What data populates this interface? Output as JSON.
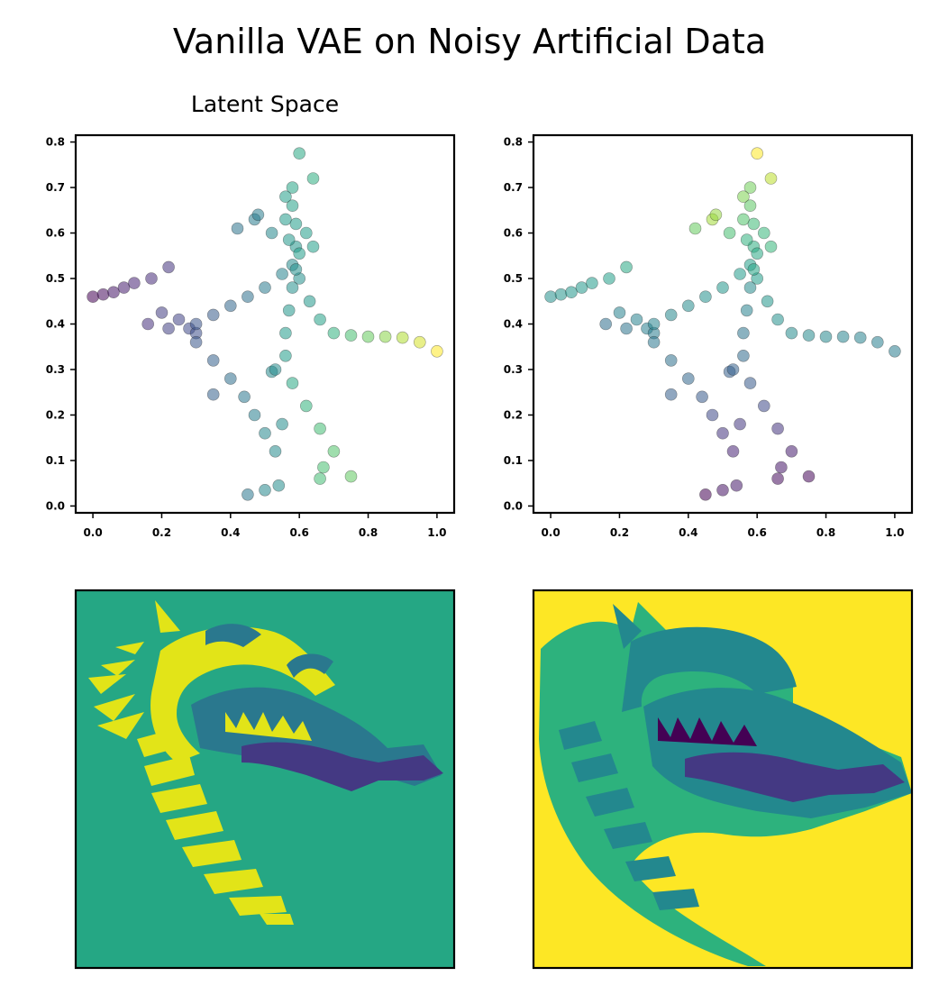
{
  "figure": {
    "suptitle": "Vanilla VAE on Noisy Artificial Data",
    "colormap": "viridis"
  },
  "chart_data": [
    {
      "type": "scatter",
      "title": "Latent Space",
      "xlim": [
        -0.05,
        1.05
      ],
      "ylim": [
        -0.015,
        0.815
      ],
      "xticks": [
        "0.0",
        "0.2",
        "0.4",
        "0.6",
        "0.8",
        "1.0"
      ],
      "yticks": [
        "0.0",
        "0.1",
        "0.2",
        "0.3",
        "0.4",
        "0.5",
        "0.6",
        "0.7",
        "0.8"
      ],
      "grid": false,
      "color_by": "cluster",
      "palette": {
        "A": "#440154",
        "B": "#3b528b",
        "C": "#21918c",
        "D": "#5ec962",
        "E": "#fde725"
      },
      "point_alpha": 0.55,
      "points": [
        {
          "x": 0.0,
          "y": 0.46,
          "c": 0.0
        },
        {
          "x": 0.03,
          "y": 0.465,
          "c": 0.03
        },
        {
          "x": 0.06,
          "y": 0.47,
          "c": 0.06
        },
        {
          "x": 0.09,
          "y": 0.48,
          "c": 0.08
        },
        {
          "x": 0.12,
          "y": 0.49,
          "c": 0.1
        },
        {
          "x": 0.22,
          "y": 0.525,
          "c": 0.15
        },
        {
          "x": 0.17,
          "y": 0.5,
          "c": 0.12
        },
        {
          "x": 0.2,
          "y": 0.425,
          "c": 0.18
        },
        {
          "x": 0.25,
          "y": 0.41,
          "c": 0.2
        },
        {
          "x": 0.28,
          "y": 0.39,
          "c": 0.22
        },
        {
          "x": 0.3,
          "y": 0.38,
          "c": 0.24
        },
        {
          "x": 0.3,
          "y": 0.4,
          "c": 0.26
        },
        {
          "x": 0.35,
          "y": 0.42,
          "c": 0.29
        },
        {
          "x": 0.4,
          "y": 0.44,
          "c": 0.33
        },
        {
          "x": 0.45,
          "y": 0.46,
          "c": 0.37
        },
        {
          "x": 0.5,
          "y": 0.48,
          "c": 0.41
        },
        {
          "x": 0.55,
          "y": 0.51,
          "c": 0.45
        },
        {
          "x": 0.58,
          "y": 0.53,
          "c": 0.48
        },
        {
          "x": 0.6,
          "y": 0.5,
          "c": 0.5
        },
        {
          "x": 0.63,
          "y": 0.45,
          "c": 0.53
        },
        {
          "x": 0.66,
          "y": 0.41,
          "c": 0.57
        },
        {
          "x": 0.7,
          "y": 0.38,
          "c": 0.64
        },
        {
          "x": 0.75,
          "y": 0.375,
          "c": 0.7
        },
        {
          "x": 0.8,
          "y": 0.372,
          "c": 0.76
        },
        {
          "x": 0.85,
          "y": 0.372,
          "c": 0.82
        },
        {
          "x": 0.9,
          "y": 0.37,
          "c": 0.88
        },
        {
          "x": 0.95,
          "y": 0.36,
          "c": 0.94
        },
        {
          "x": 1.0,
          "y": 0.34,
          "c": 1.0
        },
        {
          "x": 0.59,
          "y": 0.52,
          "c": 0.5
        },
        {
          "x": 0.59,
          "y": 0.57,
          "c": 0.52
        },
        {
          "x": 0.59,
          "y": 0.62,
          "c": 0.55
        },
        {
          "x": 0.58,
          "y": 0.66,
          "c": 0.57
        },
        {
          "x": 0.58,
          "y": 0.7,
          "c": 0.58
        },
        {
          "x": 0.6,
          "y": 0.775,
          "c": 0.6
        },
        {
          "x": 0.56,
          "y": 0.68,
          "c": 0.56
        },
        {
          "x": 0.62,
          "y": 0.6,
          "c": 0.55
        },
        {
          "x": 0.58,
          "y": 0.48,
          "c": 0.5
        },
        {
          "x": 0.57,
          "y": 0.43,
          "c": 0.52
        },
        {
          "x": 0.56,
          "y": 0.38,
          "c": 0.54
        },
        {
          "x": 0.56,
          "y": 0.33,
          "c": 0.55
        },
        {
          "x": 0.58,
          "y": 0.27,
          "c": 0.6
        },
        {
          "x": 0.62,
          "y": 0.22,
          "c": 0.65
        },
        {
          "x": 0.66,
          "y": 0.17,
          "c": 0.69
        },
        {
          "x": 0.7,
          "y": 0.12,
          "c": 0.72
        },
        {
          "x": 0.75,
          "y": 0.065,
          "c": 0.75
        },
        {
          "x": 0.3,
          "y": 0.36,
          "c": 0.27
        },
        {
          "x": 0.35,
          "y": 0.32,
          "c": 0.31
        },
        {
          "x": 0.4,
          "y": 0.28,
          "c": 0.36
        },
        {
          "x": 0.44,
          "y": 0.24,
          "c": 0.4
        },
        {
          "x": 0.47,
          "y": 0.2,
          "c": 0.43
        },
        {
          "x": 0.5,
          "y": 0.16,
          "c": 0.46
        },
        {
          "x": 0.53,
          "y": 0.12,
          "c": 0.48
        },
        {
          "x": 0.55,
          "y": 0.18,
          "c": 0.49
        },
        {
          "x": 0.45,
          "y": 0.025,
          "c": 0.4
        },
        {
          "x": 0.35,
          "y": 0.245,
          "c": 0.31
        },
        {
          "x": 0.5,
          "y": 0.035,
          "c": 0.46
        },
        {
          "x": 0.54,
          "y": 0.045,
          "c": 0.49
        },
        {
          "x": 0.66,
          "y": 0.06,
          "c": 0.69
        },
        {
          "x": 0.67,
          "y": 0.085,
          "c": 0.7
        },
        {
          "x": 0.64,
          "y": 0.72,
          "c": 0.62
        },
        {
          "x": 0.56,
          "y": 0.63,
          "c": 0.54
        },
        {
          "x": 0.47,
          "y": 0.63,
          "c": 0.42
        },
        {
          "x": 0.42,
          "y": 0.61,
          "c": 0.38
        },
        {
          "x": 0.48,
          "y": 0.64,
          "c": 0.42
        },
        {
          "x": 0.52,
          "y": 0.6,
          "c": 0.46
        },
        {
          "x": 0.52,
          "y": 0.295,
          "c": 0.47
        },
        {
          "x": 0.53,
          "y": 0.3,
          "c": 0.48
        },
        {
          "x": 0.16,
          "y": 0.4,
          "c": 0.14
        },
        {
          "x": 0.22,
          "y": 0.39,
          "c": 0.19
        },
        {
          "x": 0.57,
          "y": 0.585,
          "c": 0.53
        },
        {
          "x": 0.6,
          "y": 0.555,
          "c": 0.55
        },
        {
          "x": 0.64,
          "y": 0.57,
          "c": 0.56
        }
      ]
    },
    {
      "type": "scatter",
      "title": "",
      "xlim": [
        -0.05,
        1.05
      ],
      "ylim": [
        -0.015,
        0.815
      ],
      "xticks": [
        "0.0",
        "0.2",
        "0.4",
        "0.6",
        "0.8",
        "1.0"
      ],
      "yticks": [
        "0.0",
        "0.1",
        "0.2",
        "0.3",
        "0.4",
        "0.5",
        "0.6",
        "0.7",
        "0.8"
      ],
      "grid": false,
      "point_alpha": 0.55,
      "points": [
        {
          "x": 0.0,
          "y": 0.46,
          "c": 0.5
        },
        {
          "x": 0.03,
          "y": 0.465,
          "c": 0.51
        },
        {
          "x": 0.06,
          "y": 0.47,
          "c": 0.52
        },
        {
          "x": 0.09,
          "y": 0.48,
          "c": 0.53
        },
        {
          "x": 0.12,
          "y": 0.49,
          "c": 0.54
        },
        {
          "x": 0.22,
          "y": 0.525,
          "c": 0.6
        },
        {
          "x": 0.17,
          "y": 0.5,
          "c": 0.56
        },
        {
          "x": 0.2,
          "y": 0.425,
          "c": 0.44
        },
        {
          "x": 0.25,
          "y": 0.41,
          "c": 0.44
        },
        {
          "x": 0.28,
          "y": 0.39,
          "c": 0.43
        },
        {
          "x": 0.3,
          "y": 0.38,
          "c": 0.42
        },
        {
          "x": 0.3,
          "y": 0.4,
          "c": 0.45
        },
        {
          "x": 0.35,
          "y": 0.42,
          "c": 0.46
        },
        {
          "x": 0.4,
          "y": 0.44,
          "c": 0.48
        },
        {
          "x": 0.45,
          "y": 0.46,
          "c": 0.5
        },
        {
          "x": 0.5,
          "y": 0.48,
          "c": 0.52
        },
        {
          "x": 0.55,
          "y": 0.51,
          "c": 0.54
        },
        {
          "x": 0.58,
          "y": 0.53,
          "c": 0.56
        },
        {
          "x": 0.6,
          "y": 0.5,
          "c": 0.55
        },
        {
          "x": 0.63,
          "y": 0.45,
          "c": 0.52
        },
        {
          "x": 0.66,
          "y": 0.41,
          "c": 0.5
        },
        {
          "x": 0.7,
          "y": 0.38,
          "c": 0.48
        },
        {
          "x": 0.75,
          "y": 0.375,
          "c": 0.47
        },
        {
          "x": 0.8,
          "y": 0.372,
          "c": 0.46
        },
        {
          "x": 0.85,
          "y": 0.372,
          "c": 0.45
        },
        {
          "x": 0.9,
          "y": 0.37,
          "c": 0.44
        },
        {
          "x": 0.95,
          "y": 0.36,
          "c": 0.43
        },
        {
          "x": 1.0,
          "y": 0.34,
          "c": 0.42
        },
        {
          "x": 0.59,
          "y": 0.52,
          "c": 0.58
        },
        {
          "x": 0.59,
          "y": 0.57,
          "c": 0.62
        },
        {
          "x": 0.59,
          "y": 0.62,
          "c": 0.68
        },
        {
          "x": 0.58,
          "y": 0.66,
          "c": 0.74
        },
        {
          "x": 0.58,
          "y": 0.7,
          "c": 0.78
        },
        {
          "x": 0.6,
          "y": 0.775,
          "c": 1.0
        },
        {
          "x": 0.56,
          "y": 0.68,
          "c": 0.8
        },
        {
          "x": 0.62,
          "y": 0.6,
          "c": 0.66
        },
        {
          "x": 0.58,
          "y": 0.48,
          "c": 0.48
        },
        {
          "x": 0.57,
          "y": 0.43,
          "c": 0.44
        },
        {
          "x": 0.56,
          "y": 0.38,
          "c": 0.38
        },
        {
          "x": 0.56,
          "y": 0.33,
          "c": 0.34
        },
        {
          "x": 0.58,
          "y": 0.27,
          "c": 0.28
        },
        {
          "x": 0.62,
          "y": 0.22,
          "c": 0.22
        },
        {
          "x": 0.66,
          "y": 0.17,
          "c": 0.15
        },
        {
          "x": 0.7,
          "y": 0.12,
          "c": 0.08
        },
        {
          "x": 0.75,
          "y": 0.065,
          "c": 0.02
        },
        {
          "x": 0.3,
          "y": 0.36,
          "c": 0.4
        },
        {
          "x": 0.35,
          "y": 0.32,
          "c": 0.37
        },
        {
          "x": 0.4,
          "y": 0.28,
          "c": 0.33
        },
        {
          "x": 0.44,
          "y": 0.24,
          "c": 0.28
        },
        {
          "x": 0.47,
          "y": 0.2,
          "c": 0.22
        },
        {
          "x": 0.5,
          "y": 0.16,
          "c": 0.15
        },
        {
          "x": 0.53,
          "y": 0.12,
          "c": 0.1
        },
        {
          "x": 0.55,
          "y": 0.18,
          "c": 0.16
        },
        {
          "x": 0.45,
          "y": 0.025,
          "c": 0.0
        },
        {
          "x": 0.35,
          "y": 0.245,
          "c": 0.3
        },
        {
          "x": 0.5,
          "y": 0.035,
          "c": 0.05
        },
        {
          "x": 0.54,
          "y": 0.045,
          "c": 0.07
        },
        {
          "x": 0.66,
          "y": 0.06,
          "c": 0.03
        },
        {
          "x": 0.67,
          "y": 0.085,
          "c": 0.06
        },
        {
          "x": 0.64,
          "y": 0.72,
          "c": 0.9
        },
        {
          "x": 0.56,
          "y": 0.63,
          "c": 0.72
        },
        {
          "x": 0.47,
          "y": 0.63,
          "c": 0.86
        },
        {
          "x": 0.42,
          "y": 0.61,
          "c": 0.76
        },
        {
          "x": 0.48,
          "y": 0.64,
          "c": 0.84
        },
        {
          "x": 0.52,
          "y": 0.6,
          "c": 0.7
        },
        {
          "x": 0.52,
          "y": 0.295,
          "c": 0.3
        },
        {
          "x": 0.53,
          "y": 0.3,
          "c": 0.31
        },
        {
          "x": 0.16,
          "y": 0.4,
          "c": 0.36
        },
        {
          "x": 0.22,
          "y": 0.39,
          "c": 0.38
        },
        {
          "x": 0.57,
          "y": 0.585,
          "c": 0.64
        },
        {
          "x": 0.6,
          "y": 0.555,
          "c": 0.6
        },
        {
          "x": 0.64,
          "y": 0.57,
          "c": 0.66
        }
      ]
    }
  ],
  "images": [
    {
      "name": "dragon-reconstruction-image",
      "background": "#25a784",
      "colors": {
        "primary": "#e2e418",
        "secondary": "#2a788e",
        "accent": "#443983",
        "body": "#25a784"
      }
    },
    {
      "name": "dragon-original-image",
      "background": "#fde725",
      "colors": {
        "primary": "#2db27d",
        "secondary": "#23888e",
        "accent": "#443983",
        "dark": "#440154"
      }
    }
  ]
}
